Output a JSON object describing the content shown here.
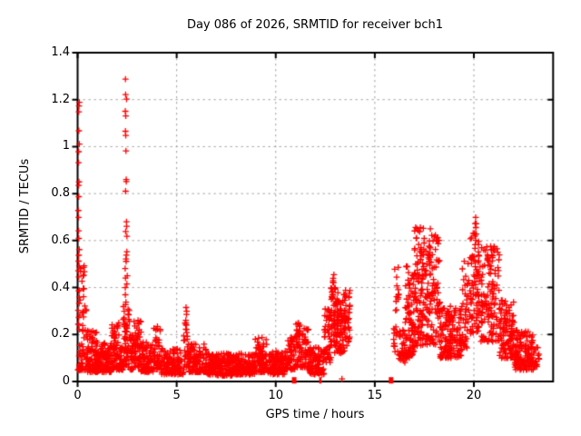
{
  "chart_data": {
    "type": "scatter",
    "title": "Day 086 of 2026, SRMTID for receiver bch1",
    "xlabel": "GPS time / hours",
    "ylabel": "SRMTID / TECUs",
    "xlim": [
      0,
      24
    ],
    "ylim": [
      0,
      1.4
    ],
    "grid": true,
    "legend": "none",
    "marker": "plus",
    "marker_color": "#ff0000",
    "grid_color": "#a0a0a0",
    "border_color": "#000000",
    "background_color": "#ffffff",
    "xticks": [
      {
        "v": 0,
        "label": "0"
      },
      {
        "v": 5,
        "label": "5"
      },
      {
        "v": 10,
        "label": "10"
      },
      {
        "v": 15,
        "label": "15"
      },
      {
        "v": 20,
        "label": "20"
      }
    ],
    "yticks": [
      {
        "v": 0,
        "label": "0"
      },
      {
        "v": 0.2,
        "label": "0.2"
      },
      {
        "v": 0.4,
        "label": "0.4"
      },
      {
        "v": 0.6,
        "label": "0.6"
      },
      {
        "v": 0.8,
        "label": "0.8"
      },
      {
        "v": 1,
        "label": "1"
      },
      {
        "v": 1.2,
        "label": "1.2"
      },
      {
        "v": 1.4,
        "label": "1.4"
      }
    ],
    "seed": 7,
    "bands": [
      {
        "x0": 0.02,
        "x1": 0.45,
        "y0": 0.05,
        "y1": 0.5,
        "n": 70,
        "bias": 3.2
      },
      {
        "x0": 0.45,
        "x1": 1.0,
        "y0": 0.04,
        "y1": 0.22,
        "n": 90,
        "bias": 2.0
      },
      {
        "x0": 1.0,
        "x1": 1.7,
        "y0": 0.04,
        "y1": 0.17,
        "n": 110,
        "bias": 1.8
      },
      {
        "x0": 1.7,
        "x1": 2.1,
        "y0": 0.05,
        "y1": 0.25,
        "n": 60,
        "bias": 1.6
      },
      {
        "x0": 2.1,
        "x1": 2.3,
        "y0": 0.05,
        "y1": 0.15,
        "n": 30,
        "bias": 1.5
      },
      {
        "x0": 2.3,
        "x1": 2.62,
        "y0": 0.06,
        "y1": 0.33,
        "n": 55,
        "bias": 1.4
      },
      {
        "x0": 2.62,
        "x1": 2.84,
        "y0": 0.05,
        "y1": 0.2,
        "n": 32,
        "bias": 1.5
      },
      {
        "x0": 2.84,
        "x1": 3.2,
        "y0": 0.06,
        "y1": 0.28,
        "n": 55,
        "bias": 1.4
      },
      {
        "x0": 3.2,
        "x1": 3.85,
        "y0": 0.04,
        "y1": 0.17,
        "n": 85,
        "bias": 1.6
      },
      {
        "x0": 3.85,
        "x1": 4.2,
        "y0": 0.05,
        "y1": 0.24,
        "n": 45,
        "bias": 1.4
      },
      {
        "x0": 4.2,
        "x1": 5.35,
        "y0": 0.03,
        "y1": 0.14,
        "n": 135,
        "bias": 1.5
      },
      {
        "x0": 5.35,
        "x1": 5.62,
        "y0": 0.06,
        "y1": 0.25,
        "n": 28,
        "bias": 1.2
      },
      {
        "x0": 5.62,
        "x1": 6.5,
        "y0": 0.04,
        "y1": 0.16,
        "n": 105,
        "bias": 1.6
      },
      {
        "x0": 6.5,
        "x1": 8.0,
        "y0": 0.025,
        "y1": 0.12,
        "n": 185,
        "bias": 1.4
      },
      {
        "x0": 8.0,
        "x1": 9.0,
        "y0": 0.03,
        "y1": 0.12,
        "n": 125,
        "bias": 1.4
      },
      {
        "x0": 9.0,
        "x1": 9.6,
        "y0": 0.04,
        "y1": 0.19,
        "n": 80,
        "bias": 1.7
      },
      {
        "x0": 9.6,
        "x1": 10.45,
        "y0": 0.03,
        "y1": 0.13,
        "n": 105,
        "bias": 1.4
      },
      {
        "x0": 10.45,
        "x1": 11.0,
        "y0": 0.05,
        "y1": 0.2,
        "n": 70,
        "bias": 1.5
      },
      {
        "x0": 11.0,
        "x1": 11.65,
        "y0": 0.06,
        "y1": 0.25,
        "n": 85,
        "bias": 1.4
      },
      {
        "x0": 11.65,
        "x1": 12.45,
        "y0": 0.03,
        "y1": 0.15,
        "n": 100,
        "bias": 1.5
      },
      {
        "x0": 12.45,
        "x1": 12.78,
        "y0": 0.08,
        "y1": 0.31,
        "n": 50,
        "bias": 1.2
      },
      {
        "x0": 12.78,
        "x1": 13.12,
        "y0": 0.12,
        "y1": 0.46,
        "n": 70,
        "bias": 1.1
      },
      {
        "x0": 13.12,
        "x1": 13.48,
        "y0": 0.12,
        "y1": 0.39,
        "n": 60,
        "bias": 1.1
      },
      {
        "x0": 13.48,
        "x1": 13.75,
        "y0": 0.15,
        "y1": 0.4,
        "n": 42,
        "bias": 1.0
      },
      {
        "x0": 15.95,
        "x1": 16.22,
        "y0": 0.12,
        "y1": 0.53,
        "n": 26,
        "bias": 1.0
      },
      {
        "x0": 16.22,
        "x1": 16.52,
        "y0": 0.08,
        "y1": 0.22,
        "n": 32,
        "bias": 1.3
      },
      {
        "x0": 16.52,
        "x1": 17.0,
        "y0": 0.1,
        "y1": 0.5,
        "n": 95,
        "bias": 1.5
      },
      {
        "x0": 17.0,
        "x1": 17.45,
        "y0": 0.15,
        "y1": 0.66,
        "n": 90,
        "bias": 1.2
      },
      {
        "x0": 17.45,
        "x1": 18.3,
        "y0": 0.15,
        "y1": 0.63,
        "n": 135,
        "bias": 1.15
      },
      {
        "x0": 18.3,
        "x1": 19.35,
        "y0": 0.1,
        "y1": 0.33,
        "n": 150,
        "bias": 1.3
      },
      {
        "x0": 19.35,
        "x1": 19.75,
        "y0": 0.13,
        "y1": 0.52,
        "n": 45,
        "bias": 1.4
      },
      {
        "x0": 19.8,
        "x1": 20.25,
        "y0": 0.2,
        "y1": 0.71,
        "n": 80,
        "bias": 1.2
      },
      {
        "x0": 20.25,
        "x1": 21.3,
        "y0": 0.17,
        "y1": 0.58,
        "n": 140,
        "bias": 1.3
      },
      {
        "x0": 21.3,
        "x1": 22.05,
        "y0": 0.1,
        "y1": 0.35,
        "n": 110,
        "bias": 1.4
      },
      {
        "x0": 22.05,
        "x1": 23.0,
        "y0": 0.05,
        "y1": 0.22,
        "n": 130,
        "bias": 1.4
      },
      {
        "x0": 23.0,
        "x1": 23.3,
        "y0": 0.06,
        "y1": 0.16,
        "n": 20,
        "bias": 1.2
      }
    ],
    "columns": [
      {
        "x": 0.06,
        "ys": [
          1.19,
          1.175,
          1.15,
          1.07,
          1.01,
          0.98,
          0.93,
          0.85,
          0.838,
          0.79,
          0.728,
          0.7,
          0.64,
          0.61,
          0.56,
          0.535,
          0.51,
          0.47,
          0.445,
          0.39,
          0.36,
          0.33,
          0.3,
          0.27,
          0.245,
          0.22
        ]
      },
      {
        "x": 2.44,
        "ys": [
          1.29,
          1.22,
          1.2,
          1.15,
          1.13,
          1.063,
          1.05,
          0.985,
          0.86,
          0.85,
          0.81,
          0.68,
          0.663,
          0.64,
          0.54,
          0.52,
          0.51,
          0.48,
          0.44,
          0.4,
          0.37,
          0.34
        ]
      },
      {
        "x": 2.52,
        "ys": [
          0.62,
          0.55,
          0.45,
          0.415
        ]
      },
      {
        "x": 5.5,
        "ys": [
          0.315,
          0.3,
          0.285,
          0.26,
          0.24,
          0.225,
          0.21,
          0.19
        ]
      },
      {
        "x": 9.0,
        "ys": [
          0.18
        ]
      },
      {
        "x": 12.9,
        "ys": [
          0.455
        ]
      },
      {
        "x": 13.37,
        "ys": [
          0.012
        ]
      },
      {
        "x": 17.3,
        "ys": [
          0.655,
          0.64
        ]
      },
      {
        "x": 17.8,
        "ys": [
          0.65
        ]
      },
      {
        "x": 18.1,
        "ys": [
          0.625,
          0.6
        ]
      },
      {
        "x": 20.08,
        "ys": [
          0.7,
          0.672,
          0.655,
          0.63,
          0.6
        ]
      },
      {
        "x": 21.0,
        "ys": [
          0.575,
          0.555
        ]
      }
    ],
    "axis_markers": [
      {
        "x": 10.93,
        "y": 0.005,
        "shape": "square",
        "w": 5,
        "h": 7
      },
      {
        "x": 12.25,
        "y": 0.005,
        "shape": "thin-square",
        "w": 2.5,
        "h": 7
      },
      {
        "x": 15.82,
        "y": 0.005,
        "shape": "square",
        "w": 5,
        "h": 7
      }
    ]
  }
}
